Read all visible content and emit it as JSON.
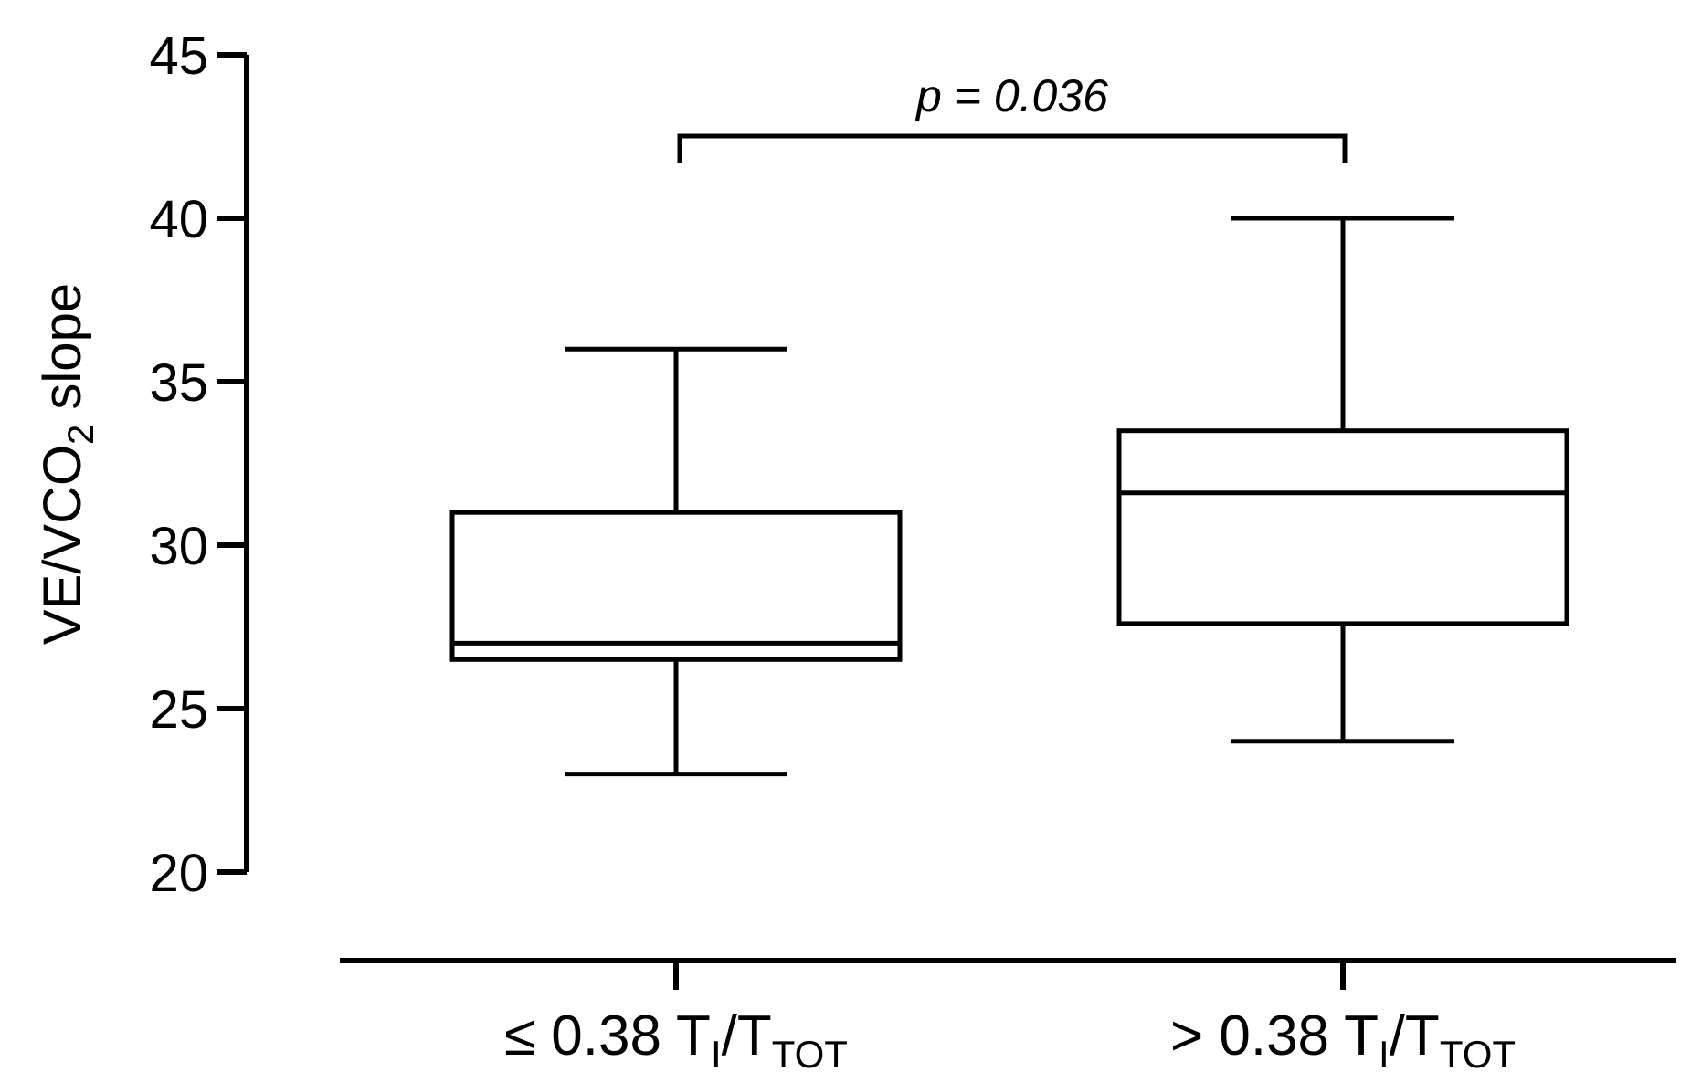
{
  "chart_data": {
    "type": "boxplot",
    "ylabel": {
      "main": "VE/VCO",
      "sub": "2",
      "rest": " slope"
    },
    "ylim": [
      20,
      45
    ],
    "yticks": [
      20,
      25,
      30,
      35,
      40,
      45
    ],
    "grid": false,
    "categories": [
      {
        "prefix": "≤ 0.38 T",
        "sub1": "I",
        "mid": "/T",
        "sub2": "TOT"
      },
      {
        "prefix": "> 0.38 T",
        "sub1": "I",
        "mid": "/T",
        "sub2": "TOT"
      }
    ],
    "boxes": [
      {
        "min": 23,
        "q1": 26.5,
        "median": 27,
        "q3": 31,
        "max": 36
      },
      {
        "min": 24,
        "q1": 27.6,
        "median": 31.6,
        "q3": 33.5,
        "max": 40
      }
    ],
    "annotation": {
      "text": "p = 0.036"
    }
  },
  "colors": {
    "stroke": "#000000",
    "background": "#ffffff"
  }
}
